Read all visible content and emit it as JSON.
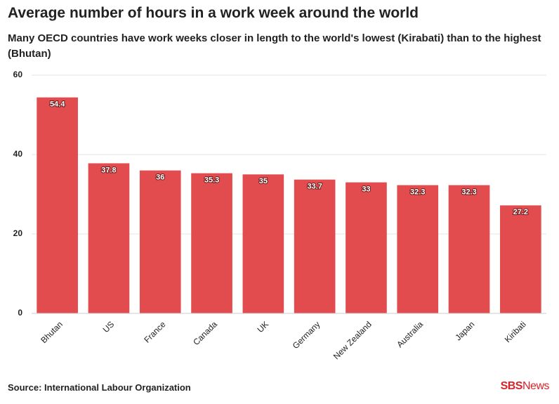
{
  "chart_data": {
    "type": "bar",
    "title": "Average number of hours in a work week around the world",
    "subtitle": "Many OECD countries have work weeks closer in length to the world's lowest (Kirabati) than to the highest (Bhutan)",
    "categories": [
      "Bhutan",
      "US",
      "France",
      "Canada",
      "UK",
      "Germany",
      "New Zealand",
      "Australia",
      "Japan",
      "Kiribati"
    ],
    "values": [
      54.4,
      37.8,
      36,
      35.3,
      35,
      33.7,
      33,
      32.3,
      32.3,
      27.2
    ],
    "color": "#e34c4f",
    "ylim": [
      0,
      60
    ],
    "yticks": [
      0,
      20,
      40,
      60
    ],
    "grid": true,
    "source": "Source: International Labour Organization",
    "brand": {
      "bold": "SBS",
      "light": "News"
    }
  }
}
